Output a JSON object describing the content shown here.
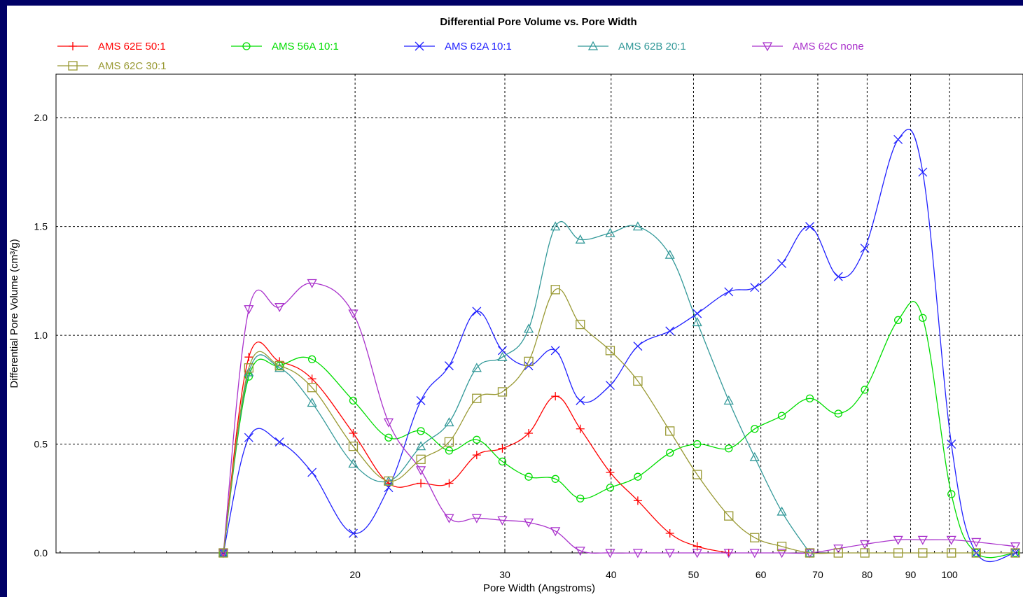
{
  "chart_data": {
    "type": "line",
    "title": "Differential Pore Volume vs. Pore Width",
    "xlabel": "Pore Width (Angstroms)",
    "ylabel": "Differential Pore Volume (cm³/g)",
    "x_scale": "log",
    "xlim": [
      8.9,
      122
    ],
    "ylim": [
      0,
      2.2
    ],
    "grid": true,
    "legend_position": "top-left",
    "x_ticks": [
      {
        "value": 20,
        "label": "20"
      },
      {
        "value": 30,
        "label": "30"
      },
      {
        "value": 40,
        "label": "40"
      },
      {
        "value": 50,
        "label": "50"
      },
      {
        "value": 60,
        "label": "60"
      },
      {
        "value": 70,
        "label": "70"
      },
      {
        "value": 80,
        "label": "80"
      },
      {
        "value": 90,
        "label": "90"
      },
      {
        "value": 100,
        "label": "100"
      }
    ],
    "y_ticks": [
      {
        "value": 0.0,
        "label": "0.0"
      },
      {
        "value": 0.5,
        "label": "0.5"
      },
      {
        "value": 1.0,
        "label": "1.0"
      },
      {
        "value": 1.5,
        "label": "1.5"
      },
      {
        "value": 2.0,
        "label": "2.0"
      }
    ],
    "series": [
      {
        "name": "AMS 62E 50:1",
        "color": "#ff0000",
        "marker": "plus",
        "x": [
          14.0,
          15.0,
          16.3,
          17.8,
          19.9,
          21.9,
          23.9,
          25.8,
          27.8,
          29.8,
          32.0,
          34.4,
          36.8,
          39.9,
          43.0,
          46.9,
          50.5,
          55.0
        ],
        "y": [
          0.0,
          0.9,
          0.88,
          0.8,
          0.55,
          0.32,
          0.32,
          0.32,
          0.45,
          0.48,
          0.55,
          0.72,
          0.57,
          0.37,
          0.24,
          0.09,
          0.03,
          0.0
        ]
      },
      {
        "name": "AMS 56A 10:1",
        "color": "#00dd00",
        "marker": "circle",
        "x": [
          14.0,
          15.0,
          16.3,
          17.8,
          19.9,
          21.9,
          23.9,
          25.8,
          27.8,
          29.8,
          32.0,
          34.4,
          36.8,
          39.9,
          43.0,
          46.9,
          50.5,
          55.0,
          59.0,
          63.5,
          68.5,
          74.0,
          79.5,
          87.0,
          93.0,
          100.5,
          107.5,
          119.5
        ],
        "y": [
          0.0,
          0.81,
          0.86,
          0.89,
          0.7,
          0.53,
          0.56,
          0.47,
          0.52,
          0.42,
          0.35,
          0.34,
          0.25,
          0.3,
          0.35,
          0.46,
          0.5,
          0.48,
          0.57,
          0.63,
          0.71,
          0.64,
          0.75,
          1.07,
          1.08,
          0.27,
          0.0,
          0.0
        ]
      },
      {
        "name": "AMS 62A 10:1",
        "color": "#2222ff",
        "marker": "x",
        "x": [
          14.0,
          15.0,
          16.3,
          17.8,
          19.9,
          21.9,
          23.9,
          25.8,
          27.8,
          29.8,
          32.0,
          34.4,
          36.8,
          39.9,
          43.0,
          46.9,
          50.5,
          55.0,
          59.0,
          63.5,
          68.5,
          74.0,
          79.5,
          87.0,
          93.0,
          100.5,
          107.5,
          119.5
        ],
        "y": [
          0.0,
          0.53,
          0.51,
          0.37,
          0.09,
          0.3,
          0.7,
          0.86,
          1.11,
          0.93,
          0.86,
          0.93,
          0.7,
          0.77,
          0.95,
          1.02,
          1.1,
          1.2,
          1.22,
          1.33,
          1.5,
          1.27,
          1.4,
          1.9,
          1.75,
          0.5,
          0.0,
          0.0
        ]
      },
      {
        "name": "AMS 62B 20:1",
        "color": "#339999",
        "marker": "triangle",
        "x": [
          14.0,
          15.0,
          16.3,
          17.8,
          19.9,
          21.9,
          23.9,
          25.8,
          27.8,
          29.8,
          32.0,
          34.4,
          36.8,
          39.9,
          43.0,
          46.9,
          50.5,
          55.0,
          59.0,
          63.5,
          68.5
        ],
        "y": [
          0.0,
          0.83,
          0.85,
          0.69,
          0.41,
          0.33,
          0.49,
          0.6,
          0.85,
          0.9,
          1.03,
          1.5,
          1.44,
          1.47,
          1.5,
          1.37,
          1.06,
          0.7,
          0.44,
          0.19,
          0.0
        ]
      },
      {
        "name": "AMS 62C none",
        "color": "#aa33cc",
        "marker": "triangle-down",
        "x": [
          14.0,
          15.0,
          16.3,
          17.8,
          19.9,
          21.9,
          23.9,
          25.8,
          27.8,
          29.8,
          32.0,
          34.4,
          36.8,
          39.9,
          43.0,
          46.9,
          50.5,
          55.0,
          59.0,
          63.5,
          68.5,
          74.0,
          79.5,
          87.0,
          93.0,
          100.5,
          107.5,
          119.5
        ],
        "y": [
          0.0,
          1.12,
          1.13,
          1.24,
          1.1,
          0.6,
          0.38,
          0.16,
          0.16,
          0.15,
          0.14,
          0.1,
          0.01,
          0.0,
          0.0,
          0.0,
          0.0,
          0.0,
          0.0,
          0.0,
          0.0,
          0.02,
          0.04,
          0.06,
          0.06,
          0.06,
          0.05,
          0.03
        ]
      },
      {
        "name": "AMS 62C 30:1",
        "color": "#999933",
        "marker": "square",
        "x": [
          14.0,
          15.0,
          16.3,
          17.8,
          19.9,
          21.9,
          23.9,
          25.8,
          27.8,
          29.8,
          32.0,
          34.4,
          36.8,
          39.9,
          43.0,
          46.9,
          50.5,
          55.0,
          59.0,
          63.5,
          68.5,
          74.0,
          79.5,
          87.0,
          93.0,
          100.5,
          107.5,
          119.5
        ],
        "y": [
          0.0,
          0.85,
          0.86,
          0.76,
          0.49,
          0.33,
          0.43,
          0.51,
          0.71,
          0.74,
          0.88,
          1.21,
          1.05,
          0.93,
          0.79,
          0.56,
          0.36,
          0.17,
          0.07,
          0.03,
          0.0,
          0.0,
          0.0,
          0.0,
          0.0,
          0.0,
          0.0,
          0.0
        ]
      }
    ]
  }
}
